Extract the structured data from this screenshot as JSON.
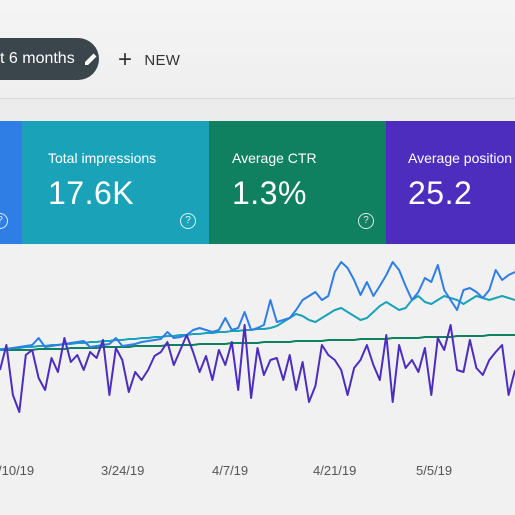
{
  "toolbar": {
    "date_chip": "t 6 months",
    "new_label": "NEW"
  },
  "cards": [
    {
      "label": "",
      "value": ""
    },
    {
      "label": "Total impressions",
      "value": "17.6K"
    },
    {
      "label": "Average CTR",
      "value": "1.3%"
    },
    {
      "label": "Average position",
      "value": "25.2"
    }
  ],
  "colors": {
    "clicks_card": "#2e7ee6",
    "impressions_card": "#1aa3b8",
    "ctr_card": "#0f8060",
    "position_card": "#4d2dbe"
  },
  "chart_data": {
    "type": "line",
    "x_tick_labels": [
      "/10/19",
      "3/24/19",
      "4/7/19",
      "4/21/19",
      "5/5/19"
    ],
    "series": [
      {
        "color": "#4d2dbe",
        "values": [
          370,
          345,
          395,
          412,
          355,
          350,
          378,
          390,
          358,
          372,
          338,
          362,
          355,
          370,
          352,
          358,
          340,
          395,
          348,
          360,
          392,
          372,
          380,
          370,
          356,
          352,
          342,
          365,
          350,
          335,
          352,
          372,
          356,
          380,
          350,
          365,
          342,
          390,
          325,
          398,
          348,
          375,
          360,
          358,
          380,
          355,
          390,
          362,
          402,
          386,
          345,
          355,
          360,
          370,
          395,
          368,
          360,
          345,
          365,
          380,
          335,
          402,
          345,
          368,
          360,
          372,
          348,
          395,
          338,
          350,
          325,
          370,
          372,
          340,
          368,
          375,
          360,
          352,
          345,
          395,
          370
        ]
      },
      {
        "color": "#2e7ee6",
        "values": [
          350,
          349,
          348,
          347,
          346,
          345,
          338,
          347,
          346,
          345,
          344,
          343,
          342,
          341,
          347,
          346,
          345,
          344,
          338,
          346,
          345,
          344,
          342,
          341,
          340,
          339,
          332,
          338,
          337,
          335,
          330,
          328,
          330,
          332,
          330,
          318,
          330,
          328,
          312,
          330,
          328,
          325,
          300,
          322,
          320,
          318,
          310,
          300,
          296,
          292,
          300,
          296,
          272,
          262,
          268,
          280,
          295,
          282,
          296,
          286,
          275,
          262,
          270,
          286,
          300,
          292,
          278,
          282,
          265,
          290,
          300,
          310,
          290,
          288,
          292,
          298,
          290,
          270,
          280,
          275,
          272
        ]
      },
      {
        "color": "#1aa3b8",
        "values": [
          349,
          349,
          348,
          348,
          347,
          347,
          346,
          346,
          345,
          345,
          344,
          344,
          343,
          343,
          342,
          342,
          341,
          341,
          340,
          340,
          339,
          339,
          338,
          338,
          337,
          337,
          336,
          336,
          335,
          335,
          334,
          334,
          333,
          333,
          332,
          332,
          331,
          331,
          330,
          330,
          329,
          329,
          328,
          326,
          322,
          318,
          314,
          316,
          320,
          322,
          318,
          314,
          310,
          308,
          312,
          316,
          320,
          318,
          312,
          306,
          302,
          306,
          310,
          308,
          300,
          296,
          302,
          304,
          300,
          296,
          298,
          300,
          304,
          300,
          296,
          298,
          300,
          298,
          296,
          298,
          300
        ]
      },
      {
        "color": "#0f8060",
        "values": [
          350,
          350,
          350,
          350,
          350,
          350,
          349,
          349,
          349,
          349,
          349,
          348,
          348,
          348,
          348,
          348,
          347,
          347,
          347,
          347,
          347,
          346,
          346,
          346,
          346,
          346,
          345,
          345,
          345,
          345,
          345,
          344,
          344,
          344,
          344,
          344,
          343,
          343,
          343,
          343,
          343,
          342,
          342,
          342,
          342,
          342,
          341,
          341,
          341,
          341,
          341,
          340,
          340,
          340,
          340,
          340,
          339,
          339,
          339,
          339,
          339,
          338,
          338,
          338,
          338,
          338,
          337,
          337,
          337,
          337,
          337,
          336,
          336,
          336,
          336,
          336,
          335,
          335,
          335,
          335,
          335
        ]
      }
    ]
  }
}
